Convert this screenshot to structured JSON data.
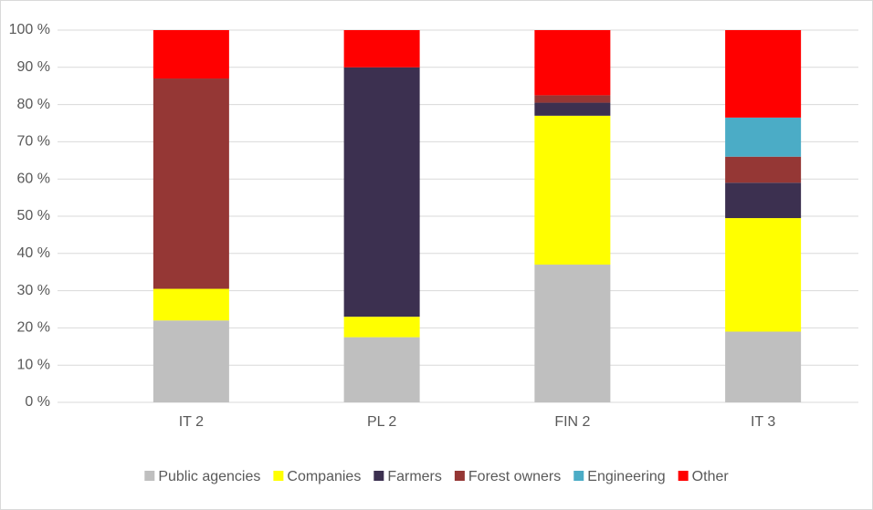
{
  "chart_data": {
    "type": "stacked_bar",
    "categories": [
      "IT 2",
      "PL 2",
      "FIN 2",
      "IT 3"
    ],
    "series": [
      {
        "name": "Public agencies",
        "color": "#bfbfbf",
        "values": [
          22,
          17.5,
          37,
          19
        ]
      },
      {
        "name": "Companies",
        "color": "#ffff00",
        "values": [
          8.5,
          5.5,
          40,
          30.5
        ]
      },
      {
        "name": "Farmers",
        "color": "#3c3050",
        "values": [
          0,
          67,
          3.5,
          9.5
        ]
      },
      {
        "name": "Forest owners",
        "color": "#953735",
        "values": [
          56.5,
          0,
          2,
          7
        ]
      },
      {
        "name": "Engineering",
        "color": "#4bacc6",
        "values": [
          0,
          0,
          0,
          10.5
        ]
      },
      {
        "name": "Other",
        "color": "#ff0000",
        "values": [
          13,
          10,
          17.5,
          23.5
        ]
      }
    ],
    "ylim": [
      0,
      100
    ],
    "yticks": [
      {
        "value": 0,
        "label": "0 %"
      },
      {
        "value": 10,
        "label": "10 %"
      },
      {
        "value": 20,
        "label": "20 %"
      },
      {
        "value": 30,
        "label": "30 %"
      },
      {
        "value": 40,
        "label": "40 %"
      },
      {
        "value": 50,
        "label": "50 %"
      },
      {
        "value": 60,
        "label": "60 %"
      },
      {
        "value": 70,
        "label": "70 %"
      },
      {
        "value": 80,
        "label": "80 %"
      },
      {
        "value": 90,
        "label": "90 %"
      },
      {
        "value": 100,
        "label": "100 %"
      }
    ],
    "grid": true,
    "legend": "bottom"
  }
}
